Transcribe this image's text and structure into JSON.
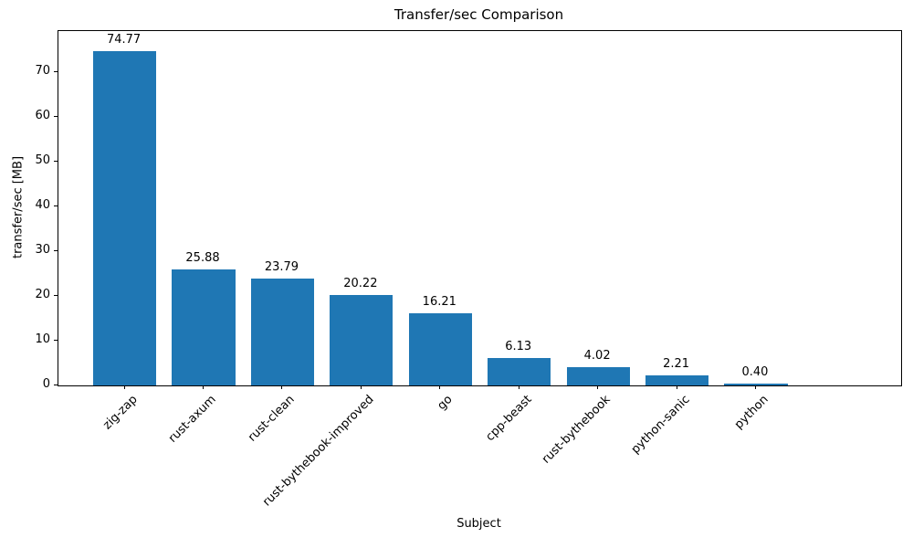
{
  "chart_data": {
    "type": "bar",
    "title": "Transfer/sec Comparison",
    "xlabel": "Subject",
    "ylabel": "transfer/sec [MB]",
    "categories": [
      "zig-zap",
      "rust-axum",
      "rust-clean",
      "rust-bythebook-improved",
      "go",
      "cpp-beast",
      "rust-bythebook",
      "python-sanic",
      "python"
    ],
    "values": [
      74.77,
      25.88,
      23.79,
      20.22,
      16.21,
      6.13,
      4.02,
      2.21,
      0.4
    ],
    "value_labels": [
      "74.77",
      "25.88",
      "23.79",
      "20.22",
      "16.21",
      "6.13",
      "4.02",
      "2.21",
      "0.40"
    ],
    "yticks": [
      0,
      10,
      20,
      30,
      40,
      50,
      60,
      70
    ],
    "ylim": [
      0,
      79.2
    ],
    "bar_color": "#1f77b4",
    "grid": false,
    "legend_position": "none",
    "xtick_rotation_deg": 45
  }
}
